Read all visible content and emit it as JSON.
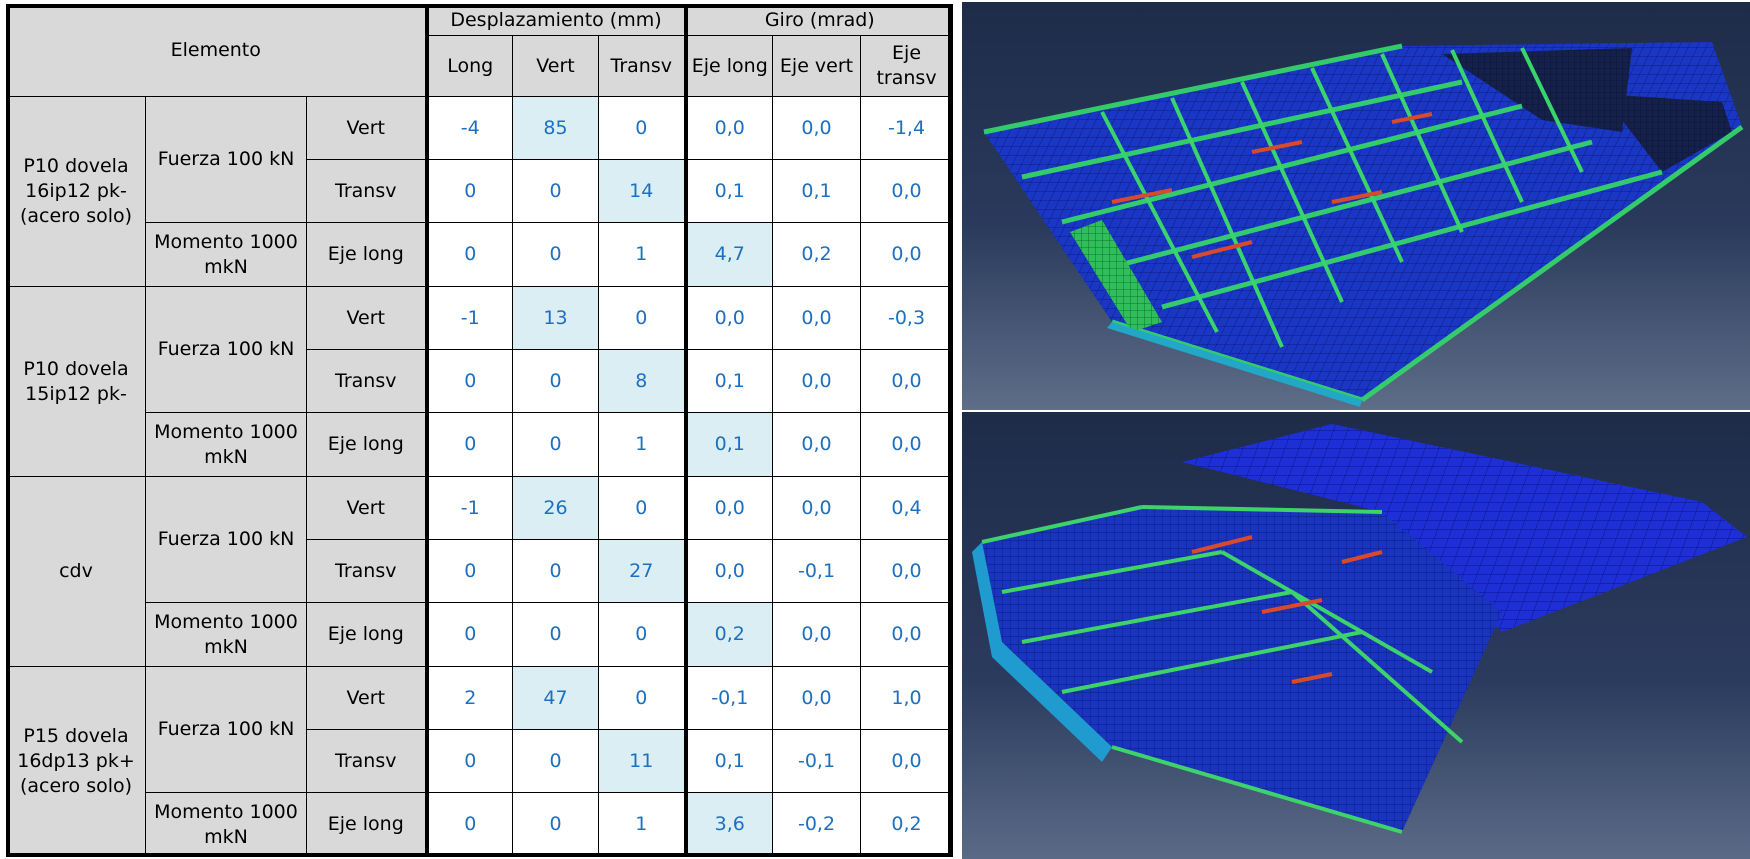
{
  "table": {
    "header": {
      "element": "Elemento",
      "group_disp": "Desplazamiento (mm)",
      "group_rot": "Giro (mrad)",
      "cols": [
        "Long",
        "Vert",
        "Transv",
        "Eje long",
        "Eje vert",
        "Eje transv"
      ]
    },
    "groups": [
      {
        "name": "P10 dovela 16ip12 pk- (acero solo)",
        "force_label": "Fuerza 100 kN",
        "moment_label": "Momento 1000 mkN",
        "rows": [
          {
            "dir": "Vert",
            "values": [
              "-4",
              "85",
              "0",
              "0,0",
              "0,0",
              "-1,4"
            ]
          },
          {
            "dir": "Transv",
            "values": [
              "0",
              "0",
              "14",
              "0,1",
              "0,1",
              "0,0"
            ]
          },
          {
            "dir": "Eje long",
            "values": [
              "0",
              "0",
              "1",
              "4,7",
              "0,2",
              "0,0"
            ]
          }
        ]
      },
      {
        "name": "P10 dovela 15ip12 pk-",
        "force_label": "Fuerza 100 kN",
        "moment_label": "Momento 1000 mkN",
        "rows": [
          {
            "dir": "Vert",
            "values": [
              "-1",
              "13",
              "0",
              "0,0",
              "0,0",
              "-0,3"
            ]
          },
          {
            "dir": "Transv",
            "values": [
              "0",
              "0",
              "8",
              "0,1",
              "0,0",
              "0,0"
            ]
          },
          {
            "dir": "Eje long",
            "values": [
              "0",
              "0",
              "1",
              "0,1",
              "0,0",
              "0,0"
            ]
          }
        ]
      },
      {
        "name": "cdv",
        "force_label": "Fuerza 100 kN",
        "moment_label": "Momento 1000 mkN",
        "rows": [
          {
            "dir": "Vert",
            "values": [
              "-1",
              "26",
              "0",
              "0,0",
              "0,0",
              "0,4"
            ]
          },
          {
            "dir": "Transv",
            "values": [
              "0",
              "0",
              "27",
              "0,0",
              "-0,1",
              "0,0"
            ]
          },
          {
            "dir": "Eje long",
            "values": [
              "0",
              "0",
              "0",
              "0,2",
              "0,0",
              "0,0"
            ]
          }
        ]
      },
      {
        "name": "P15 dovela 16dp13 pk+ (acero solo)",
        "force_label": "Fuerza 100 kN",
        "moment_label": "Momento 1000 mkN",
        "rows": [
          {
            "dir": "Vert",
            "values": [
              "2",
              "47",
              "0",
              "-0,1",
              "0,0",
              "1,0"
            ]
          },
          {
            "dir": "Transv",
            "values": [
              "0",
              "0",
              "11",
              "0,1",
              "-0,1",
              "0,0"
            ]
          },
          {
            "dir": "Eje long",
            "values": [
              "0",
              "0",
              "1",
              "3,6",
              "-0,2",
              "0,2"
            ]
          }
        ]
      }
    ],
    "colors": {
      "header_gray": "#d9d9d9",
      "value_blue": "#1f6fbf",
      "highlight": "#dbeef3"
    }
  },
  "figures": {
    "top": {
      "subject": "fe-mesh-deck-segment-with-transverse-diaphragms"
    },
    "bottom": {
      "subject": "fe-mesh-deck-segment-with-slab-plate"
    },
    "colors": {
      "background": "#23314f",
      "mesh_blue": "#1833c8",
      "stress_green": "#3fd25a",
      "stress_red": "#d24a2a",
      "stress_yellow": "#e8d83a"
    }
  }
}
